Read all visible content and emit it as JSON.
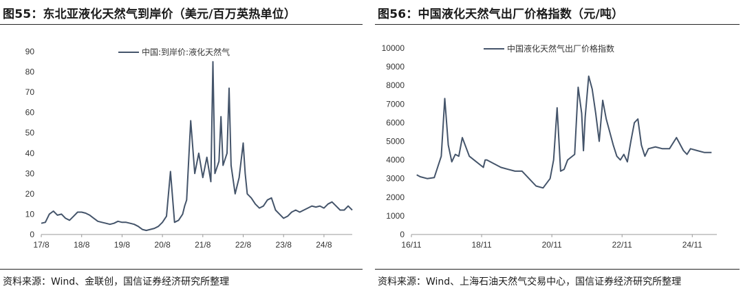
{
  "left": {
    "title": "图55：东北亚液化天然气到岸价（美元/百万英热单位）",
    "source": "资料来源：Wind、金联创，国信证券经济研究所整理"
  },
  "right": {
    "title": "图56：中国液化天然气出厂价格指数（元/吨）",
    "source": "资料来源：Wind、上海石油天然气交易中心，国信证券经济研究所整理"
  },
  "chart_data": [
    {
      "type": "line",
      "title": "东北亚液化天然气到岸价（美元/百万英热单位）",
      "x_tick_labels": [
        "17/8",
        "18/8",
        "19/8",
        "20/8",
        "21/8",
        "22/8",
        "23/8",
        "24/8"
      ],
      "x_range": [
        2017.5,
        2025.2
      ],
      "ylim": [
        0,
        90
      ],
      "y_ticks": [
        0,
        10,
        20,
        30,
        40,
        50,
        60,
        70,
        80,
        90
      ],
      "legend_position": "top-center",
      "grid": false,
      "line_color": "#44546a",
      "series": [
        {
          "name": "中国:到岸价:液化天然气",
          "x": [
            2017.5,
            2017.6,
            2017.7,
            2017.8,
            2017.9,
            2018.0,
            2018.1,
            2018.2,
            2018.3,
            2018.4,
            2018.5,
            2018.6,
            2018.7,
            2018.8,
            2018.9,
            2019.0,
            2019.1,
            2019.2,
            2019.3,
            2019.4,
            2019.5,
            2019.6,
            2019.7,
            2019.8,
            2019.9,
            2020.0,
            2020.1,
            2020.2,
            2020.3,
            2020.4,
            2020.5,
            2020.6,
            2020.7,
            2020.8,
            2020.9,
            2021.0,
            2021.05,
            2021.1,
            2021.2,
            2021.3,
            2021.4,
            2021.5,
            2021.6,
            2021.7,
            2021.75,
            2021.8,
            2021.9,
            2021.95,
            2022.0,
            2022.1,
            2022.15,
            2022.2,
            2022.3,
            2022.4,
            2022.5,
            2022.55,
            2022.6,
            2022.7,
            2022.8,
            2022.9,
            2023.0,
            2023.1,
            2023.2,
            2023.3,
            2023.4,
            2023.5,
            2023.6,
            2023.7,
            2023.8,
            2023.9,
            2024.0,
            2024.1,
            2024.2,
            2024.3,
            2024.4,
            2024.5,
            2024.6,
            2024.7,
            2024.8,
            2024.9,
            2025.0,
            2025.1,
            2025.2
          ],
          "values": [
            5.5,
            6,
            10,
            11.5,
            9.5,
            10,
            8,
            7,
            9,
            11,
            11,
            10.5,
            9.5,
            8,
            6.5,
            6,
            5.5,
            5,
            5.5,
            6.5,
            6,
            6,
            5.5,
            5,
            4,
            2.5,
            2,
            2.5,
            3,
            4,
            6,
            9,
            31,
            6,
            7,
            10,
            14,
            17,
            56,
            30,
            40,
            28,
            38,
            26,
            85,
            30,
            36,
            58,
            34,
            40,
            72,
            34,
            20,
            28,
            45,
            30,
            20,
            18,
            15,
            13,
            14,
            17,
            18,
            12,
            10,
            8,
            9,
            11,
            12,
            11,
            12,
            13,
            14,
            13.5,
            14,
            13,
            15,
            16,
            14,
            12,
            12,
            14,
            12
          ]
        }
      ]
    },
    {
      "type": "line",
      "title": "中国液化天然气出厂价格指数（元/吨）",
      "x_tick_labels": [
        "16/11",
        "18/11",
        "20/11",
        "22/11",
        "24/11"
      ],
      "x_range": [
        2016.85,
        2025.55
      ],
      "ylim": [
        0,
        10000
      ],
      "y_ticks": [
        0,
        1000,
        2000,
        3000,
        4000,
        5000,
        6000,
        7000,
        8000,
        9000,
        10000
      ],
      "legend_position": "top-center",
      "grid": false,
      "line_color": "#44546a",
      "series": [
        {
          "name": "中国液化天然气出厂价格指数",
          "x": [
            2017.0,
            2017.1,
            2017.3,
            2017.5,
            2017.7,
            2017.8,
            2017.9,
            2018.0,
            2018.1,
            2018.2,
            2018.3,
            2018.5,
            2018.7,
            2018.9,
            2018.95,
            2019.0,
            2019.2,
            2019.4,
            2019.6,
            2019.8,
            2020.0,
            2020.2,
            2020.4,
            2020.6,
            2020.8,
            2020.9,
            2021.0,
            2021.1,
            2021.2,
            2021.3,
            2021.5,
            2021.6,
            2021.7,
            2021.75,
            2021.8,
            2021.9,
            2022.0,
            2022.1,
            2022.2,
            2022.3,
            2022.4,
            2022.5,
            2022.6,
            2022.7,
            2022.8,
            2022.9,
            2023.0,
            2023.1,
            2023.2,
            2023.3,
            2023.4,
            2023.5,
            2023.6,
            2023.8,
            2024.0,
            2024.2,
            2024.4,
            2024.6,
            2024.7,
            2024.8,
            2025.0,
            2025.2,
            2025.4
          ],
          "values": [
            3200,
            3100,
            3000,
            3050,
            4200,
            7300,
            4800,
            3900,
            4300,
            4200,
            5200,
            4200,
            3900,
            3600,
            4000,
            4000,
            3800,
            3600,
            3500,
            3400,
            3400,
            3000,
            2600,
            2500,
            3000,
            4000,
            6800,
            3400,
            3500,
            4000,
            4300,
            7900,
            6500,
            4500,
            6300,
            8500,
            7800,
            6500,
            5000,
            7200,
            6200,
            5500,
            4800,
            4200,
            4000,
            4300,
            3900,
            5000,
            6000,
            6200,
            4800,
            4200,
            4600,
            4700,
            4600,
            4600,
            5200,
            4500,
            4300,
            4600,
            4500,
            4400,
            4400
          ]
        }
      ]
    }
  ]
}
